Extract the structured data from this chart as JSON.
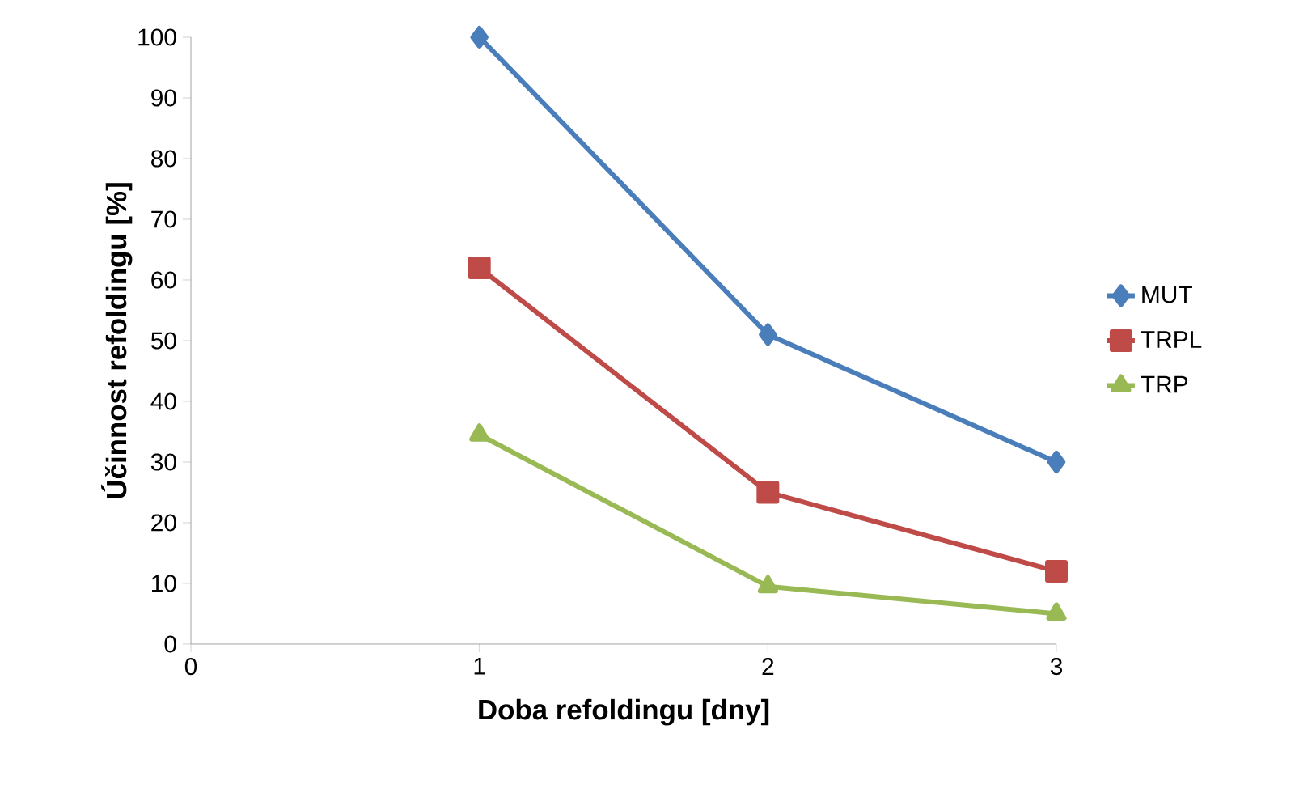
{
  "chart_data": {
    "type": "line",
    "xlabel": "Doba refoldingu [dny]",
    "ylabel": "Účinnost refoldingu [%]",
    "x": [
      1,
      2,
      3
    ],
    "series": [
      {
        "name": "MUT",
        "color": "#4a7ebb",
        "values": [
          100,
          51,
          30
        ],
        "marker": "diamond"
      },
      {
        "name": "TRPL",
        "color": "#be4b48",
        "values": [
          62,
          25,
          12
        ],
        "marker": "square"
      },
      {
        "name": "TRP",
        "color": "#98b954",
        "values": [
          34.5,
          9.5,
          5
        ],
        "marker": "triangle"
      }
    ],
    "xlim": [
      0,
      3
    ],
    "ylim": [
      0,
      100
    ],
    "xticks": [
      0,
      1,
      2,
      3
    ],
    "yticks": [
      0,
      10,
      20,
      30,
      40,
      50,
      60,
      70,
      80,
      90,
      100
    ],
    "legend": "right",
    "grid": false,
    "line_style": "solid"
  }
}
